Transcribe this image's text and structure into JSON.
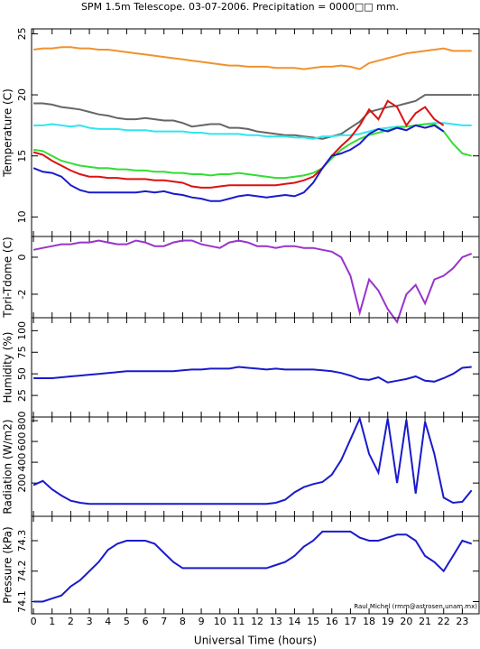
{
  "title": "SPM 1.5m Telescope. 03-07-2006. Precipitation = 0000□□ mm.",
  "credit": "Raul Michel (rmm@astrosen.unam.mx)",
  "chart_data": [
    {
      "type": "line",
      "y_label": "Temperature (C)",
      "x": [
        0,
        0.5,
        1,
        1.5,
        2,
        2.5,
        3,
        3.5,
        4,
        4.5,
        5,
        5.5,
        6,
        6.5,
        7,
        7.5,
        8,
        8.5,
        9,
        9.5,
        10,
        10.5,
        11,
        11.5,
        12,
        12.5,
        13,
        13.5,
        14,
        14.5,
        15,
        15.5,
        16,
        16.5,
        17,
        17.5,
        18,
        18.5,
        19,
        19.5,
        20,
        20.5,
        21,
        21.5,
        22,
        22.5,
        23,
        23.5
      ],
      "xlim": [
        -0.1,
        23.9
      ],
      "ylim": [
        8.4,
        25.4
      ],
      "yticks": [
        10,
        15,
        20,
        25
      ],
      "series": [
        {
          "color": "#f0922e",
          "values": [
            23.7,
            23.8,
            23.8,
            23.9,
            23.9,
            23.8,
            23.8,
            23.7,
            23.7,
            23.6,
            23.5,
            23.4,
            23.3,
            23.2,
            23.1,
            23.0,
            22.9,
            22.8,
            22.7,
            22.6,
            22.5,
            22.4,
            22.4,
            22.3,
            22.3,
            22.3,
            22.2,
            22.2,
            22.2,
            22.1,
            22.2,
            22.3,
            22.3,
            22.4,
            22.3,
            22.1,
            22.6,
            22.8,
            23.0,
            23.2,
            23.4,
            23.5,
            23.6,
            23.7,
            23.8,
            23.6,
            23.6,
            23.6
          ]
        },
        {
          "color": "#666666",
          "values": [
            19.3,
            19.3,
            19.2,
            19.0,
            18.9,
            18.8,
            18.6,
            18.4,
            18.3,
            18.1,
            18.0,
            18.0,
            18.1,
            18.0,
            17.9,
            17.9,
            17.7,
            17.4,
            17.5,
            17.6,
            17.6,
            17.3,
            17.3,
            17.2,
            17.0,
            16.9,
            16.8,
            16.7,
            16.7,
            16.6,
            16.5,
            16.4,
            16.6,
            16.8,
            17.3,
            17.8,
            18.6,
            18.8,
            19.0,
            19.1,
            19.3,
            19.5,
            20.0,
            20.0,
            20.0,
            20.0,
            20.0,
            20.0
          ]
        },
        {
          "color": "#33e5ee",
          "values": [
            17.5,
            17.5,
            17.6,
            17.5,
            17.4,
            17.5,
            17.3,
            17.2,
            17.2,
            17.2,
            17.1,
            17.1,
            17.1,
            17.0,
            17.0,
            17.0,
            17.0,
            16.9,
            16.9,
            16.8,
            16.8,
            16.8,
            16.8,
            16.7,
            16.7,
            16.6,
            16.6,
            16.6,
            16.5,
            16.5,
            16.4,
            16.6,
            16.6,
            16.7,
            16.7,
            16.8,
            17.0,
            17.2,
            17.3,
            17.4,
            17.4,
            17.5,
            17.6,
            17.7,
            17.7,
            17.6,
            17.5,
            17.5
          ]
        },
        {
          "color": "#33dd33",
          "values": [
            15.5,
            15.4,
            15.0,
            14.6,
            14.4,
            14.2,
            14.1,
            14.0,
            14.0,
            13.9,
            13.9,
            13.8,
            13.8,
            13.7,
            13.7,
            13.6,
            13.6,
            13.5,
            13.5,
            13.4,
            13.5,
            13.5,
            13.6,
            13.5,
            13.4,
            13.3,
            13.2,
            13.2,
            13.3,
            13.4,
            13.6,
            14.0,
            14.8,
            15.5,
            16.0,
            16.4,
            16.7,
            16.9,
            17.1,
            17.3,
            17.4,
            17.5,
            17.6,
            17.6,
            17.0,
            16.0,
            15.2,
            15.0
          ]
        },
        {
          "color": "#dd1111",
          "values": [
            15.3,
            15.1,
            14.6,
            14.2,
            13.8,
            13.5,
            13.3,
            13.3,
            13.2,
            13.2,
            13.1,
            13.1,
            13.1,
            13.0,
            13.0,
            12.9,
            12.8,
            12.5,
            12.4,
            12.4,
            12.5,
            12.6,
            12.6,
            12.6,
            12.6,
            12.6,
            12.6,
            12.7,
            12.8,
            13.0,
            13.3,
            14.0,
            15.0,
            15.8,
            16.5,
            17.5,
            18.8,
            18.0,
            19.5,
            19.0,
            17.5,
            18.5,
            19.0,
            18.0,
            17.5,
            null,
            null,
            null
          ]
        },
        {
          "color": "#1a1acc",
          "values": [
            14.0,
            13.7,
            13.6,
            13.3,
            12.6,
            12.2,
            12.0,
            12.0,
            12.0,
            12.0,
            12.0,
            12.0,
            12.1,
            12.0,
            12.1,
            11.9,
            11.8,
            11.6,
            11.5,
            11.3,
            11.3,
            11.5,
            11.7,
            11.8,
            11.7,
            11.6,
            11.7,
            11.8,
            11.7,
            12.0,
            12.8,
            14.0,
            15.0,
            15.2,
            15.5,
            16.0,
            16.8,
            17.2,
            17.0,
            17.3,
            17.1,
            17.5,
            17.3,
            17.5,
            17.0,
            null,
            null,
            null
          ]
        }
      ]
    },
    {
      "type": "line",
      "y_label": "Tpri-Tdome (C)",
      "x": [
        0,
        0.5,
        1,
        1.5,
        2,
        2.5,
        3,
        3.5,
        4,
        4.5,
        5,
        5.5,
        6,
        6.5,
        7,
        7.5,
        8,
        8.5,
        9,
        9.5,
        10,
        10.5,
        11,
        11.5,
        12,
        12.5,
        13,
        13.5,
        14,
        14.5,
        15,
        15.5,
        16,
        16.5,
        17,
        17.5,
        18,
        18.5,
        19,
        19.5,
        20,
        20.5,
        21,
        21.5,
        22,
        22.5,
        23,
        23.5
      ],
      "xlim": [
        -0.1,
        23.9
      ],
      "ylim": [
        -3.27,
        1.12
      ],
      "yticks": [
        -2,
        0
      ],
      "series": [
        {
          "color": "#9933cc",
          "values": [
            0.4,
            0.5,
            0.6,
            0.7,
            0.7,
            0.8,
            0.8,
            0.9,
            0.8,
            0.7,
            0.7,
            0.9,
            0.8,
            0.6,
            0.6,
            0.8,
            0.9,
            0.9,
            0.7,
            0.6,
            0.5,
            0.8,
            0.9,
            0.8,
            0.6,
            0.6,
            0.5,
            0.6,
            0.6,
            0.5,
            0.5,
            0.4,
            0.3,
            0.0,
            -1.0,
            -3.0,
            -1.2,
            -1.8,
            -2.8,
            -3.5,
            -2.0,
            -1.5,
            -2.5,
            -1.2,
            -1.0,
            -0.6,
            0.0,
            0.2
          ]
        }
      ]
    },
    {
      "type": "line",
      "y_label": "Humidity (%)",
      "x": [
        0,
        0.5,
        1,
        1.5,
        2,
        2.5,
        3,
        3.5,
        4,
        4.5,
        5,
        5.5,
        6,
        6.5,
        7,
        7.5,
        8,
        8.5,
        9,
        9.5,
        10,
        10.5,
        11,
        11.5,
        12,
        12.5,
        13,
        13.5,
        14,
        14.5,
        15,
        15.5,
        16,
        16.5,
        17,
        17.5,
        18,
        18.5,
        19,
        19.5,
        20,
        20.5,
        21,
        21.5,
        22,
        22.5,
        23,
        23.5
      ],
      "xlim": [
        -0.1,
        23.9
      ],
      "ylim": [
        0,
        115
      ],
      "yticks": [
        25,
        50,
        75,
        100
      ],
      "series": [
        {
          "color": "#1a1acc",
          "values": [
            45,
            45,
            45,
            46,
            47,
            48,
            49,
            50,
            51,
            52,
            53,
            53,
            53,
            53,
            53,
            53,
            54,
            55,
            55,
            56,
            56,
            56,
            58,
            57,
            56,
            55,
            56,
            55,
            55,
            55,
            55,
            54,
            53,
            51,
            48,
            44,
            43,
            46,
            40,
            42,
            44,
            47,
            42,
            41,
            45,
            50,
            57,
            58
          ]
        }
      ]
    },
    {
      "type": "line",
      "y_label": "Radiation (W/m2)",
      "x": [
        0,
        0.5,
        1,
        1.5,
        2,
        2.5,
        3,
        3.5,
        4,
        4.5,
        5,
        5.5,
        6,
        6.5,
        7,
        7.5,
        8,
        8.5,
        9,
        9.5,
        10,
        10.5,
        11,
        11.5,
        12,
        12.5,
        13,
        13.5,
        14,
        14.5,
        15,
        15.5,
        16,
        16.5,
        17,
        17.5,
        18,
        18.5,
        19,
        19.5,
        20,
        20.5,
        21,
        21.5,
        22,
        22.5,
        23,
        23.5
      ],
      "xlim": [
        -0.1,
        23.9
      ],
      "ylim": [
        -120,
        835
      ],
      "yticks": [
        200,
        400,
        600,
        800
      ],
      "series": [
        {
          "color": "#1a1acc",
          "values": [
            180,
            220,
            140,
            80,
            30,
            10,
            0,
            0,
            0,
            0,
            0,
            0,
            0,
            0,
            0,
            0,
            0,
            0,
            0,
            0,
            0,
            0,
            0,
            0,
            0,
            0,
            10,
            40,
            110,
            160,
            190,
            210,
            280,
            420,
            620,
            820,
            480,
            300,
            820,
            200,
            810,
            100,
            790,
            480,
            60,
            10,
            20,
            130
          ]
        }
      ]
    },
    {
      "type": "line",
      "y_label": "Pressure (kPa)",
      "x_label": "Universal Time (hours)",
      "x": [
        0,
        0.5,
        1,
        1.5,
        2,
        2.5,
        3,
        3.5,
        4,
        4.5,
        5,
        5.5,
        6,
        6.5,
        7,
        7.5,
        8,
        8.5,
        9,
        9.5,
        10,
        10.5,
        11,
        11.5,
        12,
        12.5,
        13,
        13.5,
        14,
        14.5,
        15,
        15.5,
        16,
        16.5,
        17,
        17.5,
        18,
        18.5,
        19,
        19.5,
        20,
        20.5,
        21,
        21.5,
        22,
        22.5,
        23,
        23.5
      ],
      "xlim": [
        -0.1,
        23.9
      ],
      "ylim": [
        74.06,
        74.38
      ],
      "yticks": [
        74.1,
        74.2,
        74.3
      ],
      "xticks": [
        0,
        1,
        2,
        3,
        4,
        5,
        6,
        7,
        8,
        9,
        10,
        11,
        12,
        13,
        14,
        15,
        16,
        17,
        18,
        19,
        20,
        21,
        22,
        23
      ],
      "series": [
        {
          "color": "#1a1acc",
          "values": [
            74.1,
            74.1,
            74.11,
            74.12,
            74.15,
            74.17,
            74.2,
            74.23,
            74.27,
            74.29,
            74.3,
            74.3,
            74.3,
            74.29,
            74.26,
            74.23,
            74.21,
            74.21,
            74.21,
            74.21,
            74.21,
            74.21,
            74.21,
            74.21,
            74.21,
            74.21,
            74.22,
            74.23,
            74.25,
            74.28,
            74.3,
            74.33,
            74.33,
            74.33,
            74.33,
            74.31,
            74.3,
            74.3,
            74.31,
            74.32,
            74.32,
            74.3,
            74.25,
            74.23,
            74.2,
            74.25,
            74.3,
            74.29
          ]
        }
      ]
    }
  ]
}
